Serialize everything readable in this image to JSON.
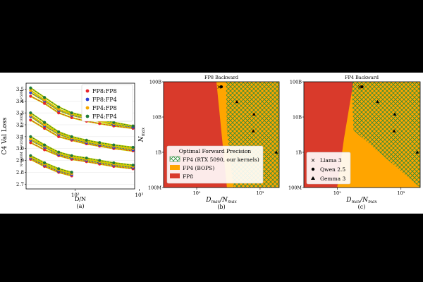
{
  "colors": {
    "fp8_fp8": "#e8242b",
    "fp8_fp4": "#2a3fd6",
    "fp4_fp8": "#f7a800",
    "fp4_fp4": "#1f7a3a",
    "region_fp8": "#d93a2b",
    "region_fp4_bops": "#ffa500",
    "region_fp4_kernels_hatch": "#2e8b3a",
    "fit_line": "#c8d000"
  },
  "chart_data": [
    {
      "type": "scatter",
      "panel_label": "(a)",
      "xlabel": "D/N",
      "ylabel": "C4 Val Loss",
      "x_scale": "log",
      "xlim": [
        17,
        850
      ],
      "ylim": [
        2.66,
        3.55
      ],
      "xticks": [
        {
          "v": 100,
          "label": "10²"
        },
        {
          "v": 1000,
          "label": "10³"
        }
      ],
      "yticks": [
        "2.7",
        "2.8",
        "2.9",
        "3.0",
        "3.1",
        "3.2",
        "3.3",
        "3.4",
        "3.5"
      ],
      "legend_position": "top-right",
      "legend": [
        "FP8:FP8",
        "FP8:FP4",
        "FP4:FP8",
        "FP4:FP4"
      ],
      "group_labels": [
        "N=50M",
        "N=100M",
        "N=200M",
        "N=400M"
      ],
      "groups": [
        {
          "label": "N=50M",
          "x": [
            20,
            33,
            55,
            88,
            150,
            240,
            400,
            800
          ],
          "series": [
            {
              "name": "FP8:FP8",
              "y": [
                3.44,
                3.38,
                3.3,
                3.26,
                3.23,
                3.21,
                3.19,
                3.17
              ]
            },
            {
              "name": "FP8:FP4",
              "y": [
                3.47,
                3.4,
                3.32,
                3.28,
                3.25,
                3.23,
                3.2,
                3.18
              ]
            },
            {
              "name": "FP4:FP8",
              "y": [
                3.49,
                3.41,
                3.33,
                3.29,
                3.26,
                3.23,
                3.21,
                3.19
              ]
            },
            {
              "name": "FP4:FP4",
              "y": [
                3.51,
                3.43,
                3.35,
                3.3,
                3.27,
                3.24,
                3.22,
                3.19
              ]
            }
          ]
        },
        {
          "label": "N=100M",
          "x": [
            20,
            33,
            55,
            88,
            150,
            240,
            400,
            800
          ],
          "series": [
            {
              "name": "FP8:FP8",
              "y": [
                3.24,
                3.17,
                3.1,
                3.07,
                3.04,
                3.02,
                3.0,
                2.98
              ]
            },
            {
              "name": "FP8:FP4",
              "y": [
                3.27,
                3.19,
                3.12,
                3.08,
                3.05,
                3.03,
                3.01,
                2.99
              ]
            },
            {
              "name": "FP4:FP8",
              "y": [
                3.28,
                3.2,
                3.13,
                3.09,
                3.06,
                3.04,
                3.02,
                3.0
              ]
            },
            {
              "name": "FP4:FP4",
              "y": [
                3.3,
                3.22,
                3.14,
                3.1,
                3.07,
                3.05,
                3.03,
                3.01
              ]
            }
          ]
        },
        {
          "label": "N=200M",
          "x": [
            20,
            33,
            55,
            88,
            150,
            240,
            400,
            800
          ],
          "series": [
            {
              "name": "FP8:FP8",
              "y": [
                3.05,
                2.99,
                2.94,
                2.91,
                2.89,
                2.87,
                2.85,
                2.83
              ]
            },
            {
              "name": "FP8:FP4",
              "y": [
                3.07,
                3.01,
                2.95,
                2.92,
                2.9,
                2.88,
                2.86,
                2.84
              ]
            },
            {
              "name": "FP4:FP8",
              "y": [
                3.08,
                3.02,
                2.96,
                2.93,
                2.91,
                2.89,
                2.87,
                2.85
              ]
            },
            {
              "name": "FP4:FP4",
              "y": [
                3.1,
                3.03,
                2.97,
                2.94,
                2.92,
                2.9,
                2.88,
                2.86
              ]
            }
          ]
        },
        {
          "label": "N=400M",
          "x": [
            20,
            33,
            55,
            88
          ],
          "series": [
            {
              "name": "FP8:FP8",
              "y": [
                2.91,
                2.85,
                2.8,
                2.77
              ]
            },
            {
              "name": "FP8:FP4",
              "y": [
                2.92,
                2.86,
                2.81,
                2.78
              ]
            },
            {
              "name": "FP4:FP8",
              "y": [
                2.93,
                2.87,
                2.82,
                2.79
              ]
            },
            {
              "name": "FP4:FP4",
              "y": [
                2.94,
                2.88,
                2.83,
                2.8
              ]
            }
          ]
        }
      ]
    },
    {
      "type": "area",
      "panel_label": "(b)",
      "title": "FP8 Backward",
      "xlabel": "D_max/N_max",
      "ylabel": "N_max",
      "x_scale": "log",
      "y_scale": "log",
      "xlim": [
        30,
        2000
      ],
      "ylim": [
        100000000.0,
        100000000000.0
      ],
      "xticks": [
        {
          "v": 100,
          "label": "10²"
        },
        {
          "v": 1000,
          "label": "10³"
        }
      ],
      "yticks": [
        {
          "v": 100000000.0,
          "label": "100M"
        },
        {
          "v": 1000000000.0,
          "label": "1B"
        },
        {
          "v": 10000000000.0,
          "label": "10B"
        },
        {
          "v": 100000000000.0,
          "label": "100B"
        }
      ],
      "legend_title": "Optimal Forward Precision",
      "legend_position": "center",
      "legend": [
        "FP4 (RTX 5090, our kernels)",
        "FP4 (BOPS)",
        "FP8"
      ],
      "boundaries": {
        "fp4_bops": [
          [
            300,
            100000000.0
          ],
          [
            205,
            100000000000.0
          ]
        ],
        "fp4_kernels": [
          [
            380,
            100000000.0
          ],
          [
            300,
            4000000000.0
          ],
          [
            290,
            100000000000.0
          ]
        ]
      },
      "markers": [
        {
          "model": "Llama 3",
          "shape": "x",
          "x": 225,
          "y": 70000000000.0
        },
        {
          "model": "Qwen 2.5",
          "shape": "dot",
          "x": 245,
          "y": 72000000000.0
        },
        {
          "model": "Gemma 3",
          "shape": "triangle",
          "x": 430,
          "y": 27000000000.0
        },
        {
          "model": "Gemma 3",
          "shape": "triangle",
          "x": 800,
          "y": 12000000000.0
        },
        {
          "model": "Gemma 3",
          "shape": "triangle",
          "x": 780,
          "y": 4000000000.0
        },
        {
          "model": "Gemma 3",
          "shape": "triangle",
          "x": 1800,
          "y": 1000000000.0
        }
      ]
    },
    {
      "type": "area",
      "panel_label": "(c)",
      "title": "FP4 Backward",
      "xlabel": "D_max/N_max",
      "ylabel": "",
      "x_scale": "log",
      "y_scale": "log",
      "xlim": [
        30,
        2000
      ],
      "ylim": [
        100000000.0,
        100000000000.0
      ],
      "xticks": [
        {
          "v": 100,
          "label": "10²"
        },
        {
          "v": 1000,
          "label": "10³"
        }
      ],
      "yticks": [
        {
          "v": 100000000.0,
          "label": "100M"
        },
        {
          "v": 1000000000.0,
          "label": "1B"
        },
        {
          "v": 10000000000.0,
          "label": "10B"
        },
        {
          "v": 100000000000.0,
          "label": "100B"
        }
      ],
      "legend_position": "lower-left",
      "legend": [
        "Llama 3",
        "Qwen 2.5",
        "Gemma 3"
      ],
      "boundaries": {
        "fp4_bops": [
          [
            100,
            100000000.0
          ],
          [
            128,
            2500000000.0
          ],
          [
            180,
            100000000000.0
          ]
        ],
        "fp4_kernels": [
          [
            2000,
            100000000.0
          ],
          [
            2000,
            100000000.0
          ],
          [
            180,
            4200000000.0
          ],
          [
            168,
            100000000000.0
          ]
        ]
      },
      "markers": [
        {
          "model": "Llama 3",
          "shape": "x",
          "x": 225,
          "y": 70000000000.0
        },
        {
          "model": "Qwen 2.5",
          "shape": "dot",
          "x": 245,
          "y": 72000000000.0
        },
        {
          "model": "Gemma 3",
          "shape": "triangle",
          "x": 430,
          "y": 27000000000.0
        },
        {
          "model": "Gemma 3",
          "shape": "triangle",
          "x": 800,
          "y": 12000000000.0
        },
        {
          "model": "Gemma 3",
          "shape": "triangle",
          "x": 780,
          "y": 4000000000.0
        },
        {
          "model": "Gemma 3",
          "shape": "triangle",
          "x": 1800,
          "y": 1000000000.0
        }
      ]
    }
  ]
}
